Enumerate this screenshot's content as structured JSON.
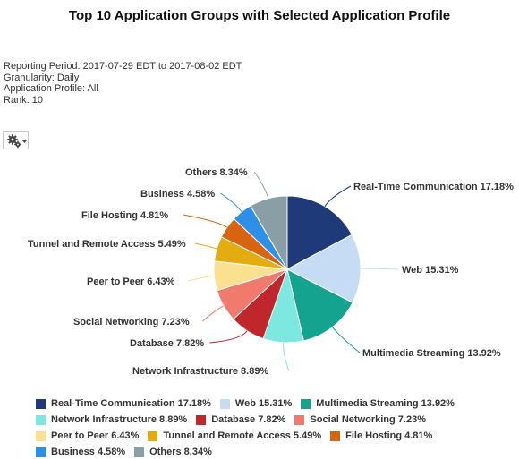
{
  "page": {
    "title": "Top 10 Application Groups with Selected Application Profile"
  },
  "report": {
    "reporting_period": "Reporting Period: 2017-07-29 EDT to 2017-08-02 EDT",
    "granularity": "Granularity: Daily",
    "application_profile": "Application Profile: All",
    "rank": "Rank: 10"
  },
  "toolbar": {
    "settings_icon": "gears-icon",
    "dropdown_icon": "caret-down-icon"
  },
  "chart_data": {
    "type": "pie",
    "title": "",
    "slices": [
      {
        "name": "Real-Time Communication",
        "value": 17.18,
        "label": "Real-Time Communication 17.18%",
        "color": "#1f3a78"
      },
      {
        "name": "Web",
        "value": 15.31,
        "label": "Web 15.31%",
        "color": "#c6dcf5"
      },
      {
        "name": "Multimedia Streaming",
        "value": 13.92,
        "label": "Multimedia Streaming 13.92%",
        "color": "#14a38f"
      },
      {
        "name": "Network Infrastructure",
        "value": 8.89,
        "label": "Network Infrastructure 8.89%",
        "color": "#7de8e0"
      },
      {
        "name": "Database",
        "value": 7.82,
        "label": "Database 7.82%",
        "color": "#c0272d"
      },
      {
        "name": "Social Networking",
        "value": 7.23,
        "label": "Social Networking 7.23%",
        "color": "#f07a6e"
      },
      {
        "name": "Peer to Peer",
        "value": 6.43,
        "label": "Peer to Peer 6.43%",
        "color": "#fae08f"
      },
      {
        "name": "Tunnel and Remote Access",
        "value": 5.49,
        "label": "Tunnel and Remote Access 5.49%",
        "color": "#e3ad12"
      },
      {
        "name": "File Hosting",
        "value": 4.81,
        "label": "File Hosting 4.81%",
        "color": "#d9640f"
      },
      {
        "name": "Business",
        "value": 4.58,
        "label": "Business 4.58%",
        "color": "#2d8fe8"
      },
      {
        "name": "Others",
        "value": 8.34,
        "label": "Others 8.34%",
        "color": "#8a9ea6"
      }
    ],
    "legend_position": "bottom"
  }
}
